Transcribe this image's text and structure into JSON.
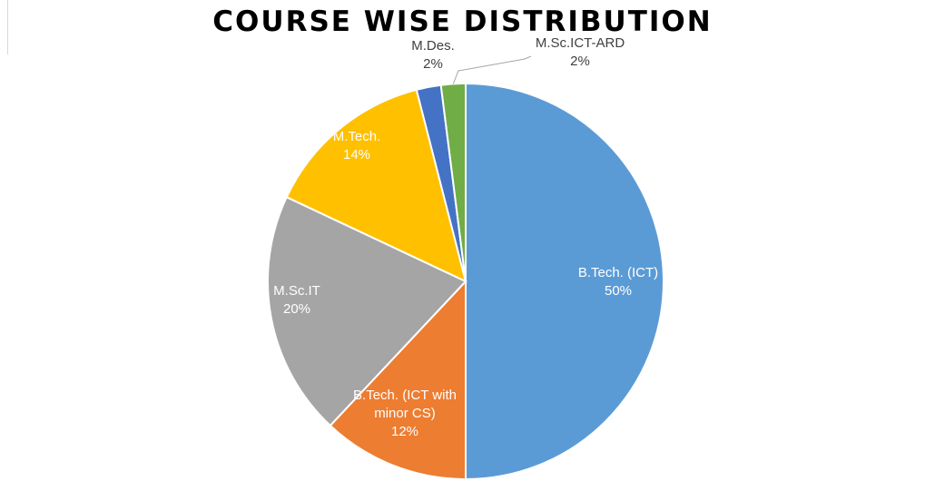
{
  "chart_data": {
    "type": "pie",
    "title": "COURSE WISE DISTRIBUTION",
    "slices": [
      {
        "label": [
          "B.Tech. (ICT)"
        ],
        "percent_label": "50%",
        "value": 50,
        "color": "#5b9bd5",
        "label_color": "#ffffff"
      },
      {
        "label": [
          "B.Tech. (ICT with",
          "minor CS)"
        ],
        "percent_label": "12%",
        "value": 12,
        "color": "#ed7d31",
        "label_color": "#ffffff"
      },
      {
        "label": [
          "M.Sc.IT"
        ],
        "percent_label": "20%",
        "value": 20,
        "color": "#a5a5a5",
        "label_color": "#ffffff"
      },
      {
        "label": [
          "M.Tech."
        ],
        "percent_label": "14%",
        "value": 14,
        "color": "#ffc000",
        "label_color": "#ffffff"
      },
      {
        "label": [
          "M.Des."
        ],
        "percent_label": "2%",
        "value": 2,
        "color": "#4472c4",
        "label_color": "#404040"
      },
      {
        "label": [
          "M.Sc.ICT-ARD"
        ],
        "percent_label": "2%",
        "value": 2,
        "color": "#70ad47",
        "label_color": "#404040"
      }
    ],
    "start_angle": "12 o'clock",
    "direction": "clockwise",
    "legend": "none"
  }
}
